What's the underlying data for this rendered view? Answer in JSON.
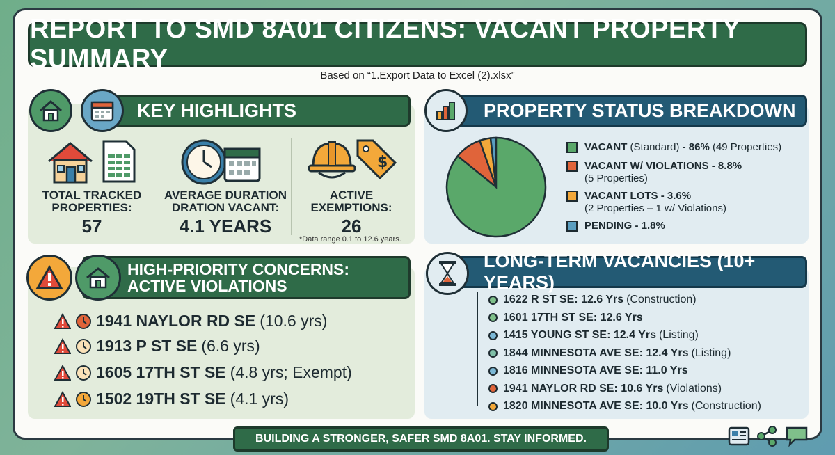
{
  "title": "REPORT TO SMD 8A01 CITIZENS: VACANT PROPERTY SUMMARY",
  "subtitle": "Based on “1.Export Data to Excel (2).xlsx”",
  "key_highlights": {
    "header": "KEY HIGHLIGHTS",
    "stats": [
      {
        "label_lines": [
          "TOTAL TRACKED",
          "PROPERTIES:"
        ],
        "value": "57"
      },
      {
        "label_lines": [
          "AVERAGE DURATION",
          "DRATION VACANT:"
        ],
        "value": "4.1 YEARS"
      },
      {
        "label_lines": [
          "ACTIVE",
          "EXEMPTIONS:"
        ],
        "value": "26"
      }
    ],
    "note": "*Data range 0.1 to 12.6 years."
  },
  "status": {
    "header": "PROPERTY STATUS BREAKDOWN",
    "legend": [
      {
        "bold": "VACANT",
        "normal": " (Standard) ",
        "bold2": "- 86%",
        "normal2": " (49 Properties)",
        "line2": "",
        "color": "#5aa86a"
      },
      {
        "bold": "VACANT W/ VIOLATIONS - 8.8%",
        "normal": "",
        "bold2": "",
        "normal2": "",
        "line2": "(5 Properties)",
        "color": "#e0643a"
      },
      {
        "bold": "VACANT LOTS - 3.6%",
        "normal": "",
        "bold2": "",
        "normal2": "",
        "line2": "(2 Properties – 1 w/ Violations)",
        "color": "#f3a83a"
      },
      {
        "bold": "PENDING - 1.8%",
        "normal": "",
        "bold2": "",
        "normal2": "",
        "line2": "",
        "color": "#5a9ec0"
      }
    ]
  },
  "chart_data": {
    "type": "pie",
    "categories": [
      "VACANT (Standard)",
      "VACANT W/ VIOLATIONS",
      "VACANT LOTS",
      "PENDING"
    ],
    "values": [
      86,
      8.8,
      3.6,
      1.8
    ],
    "colors": [
      "#5aa86a",
      "#e0643a",
      "#f3a83a",
      "#5a9ec0"
    ]
  },
  "concerns": {
    "header_line1": "HIGH-PRIORITY CONCERNS:",
    "header_line2": "ACTIVE VIOLATIONS",
    "items": [
      {
        "address": "1941 NAYLOR RD SE",
        "detail": "(10.6 yrs)"
      },
      {
        "address": "1913 P ST SE",
        "detail": "(6.6 yrs)"
      },
      {
        "address": "1605 17TH ST SE",
        "detail": "(4.8 yrs; Exempt)"
      },
      {
        "address": "1502 19TH ST SE",
        "detail": "(4.1 yrs)"
      }
    ]
  },
  "long_term": {
    "header": "LONG-TERM VACANCIES (10+ YEARS)",
    "items": [
      {
        "address": "1622 R ST SE: 12.6 Yrs",
        "note": "(Construction)",
        "color": "#7fc08a"
      },
      {
        "address": "1601 17TH ST SE: 12.6 Yrs",
        "note": "",
        "color": "#7fc08a"
      },
      {
        "address": "1415 YOUNG ST SE: 12.4 Yrs",
        "note": "(Listing)",
        "color": "#7bb8d6"
      },
      {
        "address": "1844 MINNESOTA AVE SE: 12.4 Yrs",
        "note": "(Listing)",
        "color": "#7fc0a8"
      },
      {
        "address": "1816 MINNESOTA AVE SE: 11.0 Yrs",
        "note": "",
        "color": "#7bb8d6"
      },
      {
        "address": "1941 NAYLOR RD SE: 10.6 Yrs",
        "note": "(Violations)",
        "color": "#e0643a"
      },
      {
        "address": "1820 MINNESOTA AVE SE: 10.0 Yrs",
        "note": "(Construction)",
        "color": "#f3a83a"
      }
    ]
  },
  "footer": "BUILDING A STRONGER, SAFER SMD 8A01. STAY INFORMED.",
  "icons": [
    "house-icon",
    "calendar-icon",
    "spreadsheet-icon",
    "clock-icon",
    "hard-hat-icon",
    "price-tag-icon",
    "bar-chart-icon",
    "warning-icon",
    "hourglass-icon",
    "document-icon",
    "share-icon",
    "chat-icon"
  ]
}
